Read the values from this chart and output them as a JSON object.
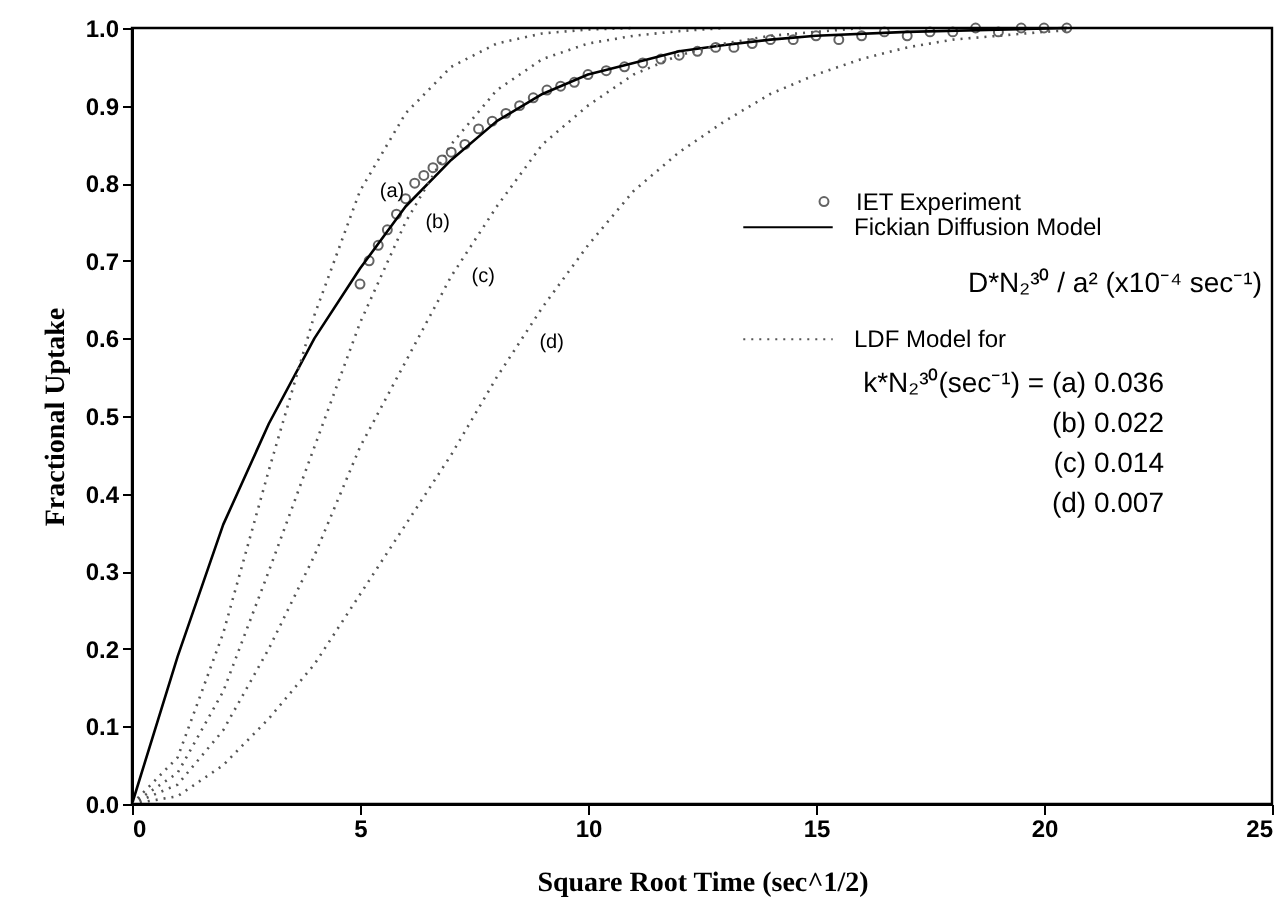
{
  "chart_data": {
    "type": "line",
    "xlabel": "Square Root Time (sec^1/2)",
    "ylabel": "Fractional Uptake",
    "xlim": [
      0,
      25
    ],
    "xticks": [
      0,
      5,
      10,
      15,
      20,
      25
    ],
    "ylim": [
      0,
      1
    ],
    "yticks": [
      {
        "value": 0,
        "label": "0.0"
      },
      {
        "value": 0.1,
        "label": "0.1"
      },
      {
        "value": 0.2,
        "label": "0.2"
      },
      {
        "value": 0.3,
        "label": "0.3"
      },
      {
        "value": 0.4,
        "label": "0.4"
      },
      {
        "value": 0.5,
        "label": "0.5"
      },
      {
        "value": 0.6,
        "label": "0.6"
      },
      {
        "value": 0.7,
        "label": "0.7"
      },
      {
        "value": 0.8,
        "label": "0.8"
      },
      {
        "value": 0.9,
        "label": "0.9"
      },
      {
        "value": 1,
        "label": "1.0"
      }
    ],
    "grid": false,
    "legend": "right",
    "series": [
      {
        "name": "IET Experiment",
        "type": "scatter",
        "marker": "circle",
        "color": "#222222",
        "x": [
          5.0,
          5.2,
          5.4,
          5.6,
          5.8,
          6.0,
          6.2,
          6.4,
          6.6,
          6.8,
          7.0,
          7.3,
          7.6,
          7.9,
          8.2,
          8.5,
          8.8,
          9.1,
          9.4,
          9.7,
          10.0,
          10.4,
          10.8,
          11.2,
          11.6,
          12.0,
          12.4,
          12.8,
          13.2,
          13.6,
          14.0,
          14.5,
          15.0,
          15.5,
          16.0,
          16.5,
          17.0,
          17.5,
          18.0,
          18.5,
          19.0,
          19.5,
          20.0,
          20.5
        ],
        "values": [
          0.67,
          0.7,
          0.72,
          0.74,
          0.76,
          0.78,
          0.8,
          0.81,
          0.82,
          0.83,
          0.84,
          0.85,
          0.87,
          0.88,
          0.89,
          0.9,
          0.91,
          0.92,
          0.925,
          0.93,
          0.94,
          0.945,
          0.95,
          0.955,
          0.96,
          0.965,
          0.97,
          0.975,
          0.975,
          0.98,
          0.985,
          0.985,
          0.99,
          0.985,
          0.99,
          0.995,
          0.99,
          0.995,
          0.995,
          1.0,
          0.995,
          1.0,
          1.0,
          1.0
        ]
      },
      {
        "name": "Fickian Diffusion Model",
        "line_style": "solid",
        "color": "#000000",
        "x": [
          0,
          1,
          2,
          3,
          4,
          5,
          6,
          7,
          8,
          9,
          10,
          11,
          12,
          13,
          14,
          15,
          17,
          20.5
        ],
        "values": [
          0,
          0.19,
          0.36,
          0.49,
          0.6,
          0.69,
          0.77,
          0.83,
          0.88,
          0.915,
          0.94,
          0.955,
          0.97,
          0.978,
          0.985,
          0.99,
          0.995,
          1.0
        ]
      },
      {
        "name": "LDF Model for",
        "line_style": "dotted",
        "color": "#555555",
        "x": [
          0,
          1,
          2,
          3,
          4,
          5,
          6,
          7,
          8,
          9,
          10,
          11
        ],
        "values": [
          0,
          0.06,
          0.22,
          0.43,
          0.63,
          0.79,
          0.89,
          0.95,
          0.98,
          0.993,
          0.998,
          1.0
        ]
      },
      {
        "line_style": "dotted",
        "color": "#555555",
        "x": [
          0,
          1,
          2,
          3,
          4,
          5,
          6,
          7,
          8,
          9,
          10,
          11,
          12,
          13
        ],
        "values": [
          0,
          0.04,
          0.145,
          0.3,
          0.46,
          0.62,
          0.75,
          0.85,
          0.92,
          0.96,
          0.98,
          0.99,
          0.996,
          1.0
        ]
      },
      {
        "line_style": "dotted",
        "color": "#555555",
        "x": [
          0,
          1,
          2,
          3,
          4,
          5,
          6,
          7,
          8,
          9,
          10,
          11,
          12,
          13,
          14,
          15,
          16
        ],
        "values": [
          0,
          0.025,
          0.095,
          0.2,
          0.32,
          0.46,
          0.57,
          0.68,
          0.77,
          0.85,
          0.9,
          0.94,
          0.965,
          0.98,
          0.99,
          0.995,
          1.0
        ]
      },
      {
        "line_style": "dotted",
        "color": "#555555",
        "x": [
          0,
          1,
          2,
          3,
          4,
          5,
          6,
          7,
          8,
          9,
          10,
          11,
          12,
          13,
          14,
          15,
          16,
          17,
          18,
          20,
          20.5
        ],
        "values": [
          0,
          0.01,
          0.05,
          0.11,
          0.18,
          0.27,
          0.36,
          0.45,
          0.55,
          0.64,
          0.72,
          0.79,
          0.84,
          0.88,
          0.915,
          0.94,
          0.96,
          0.975,
          0.985,
          0.995,
          0.997
        ]
      }
    ],
    "annotations": [
      "D*N₂³⁰ / a² (x10⁻⁴ sec⁻¹)",
      "k*N₂³⁰(sec⁻¹) = (a) 0.036",
      "(b) 0.022",
      "(c) 0.014",
      "(d) 0.007",
      {
        "text": "(a)",
        "x": 5,
        "y": 0.79
      },
      {
        "text": "(b)",
        "x": 6,
        "y": 0.75
      },
      {
        "text": "(c)",
        "x": 7,
        "y": 0.68
      },
      {
        "text": "(d)",
        "x": 8.5,
        "y": 0.595
      }
    ]
  }
}
